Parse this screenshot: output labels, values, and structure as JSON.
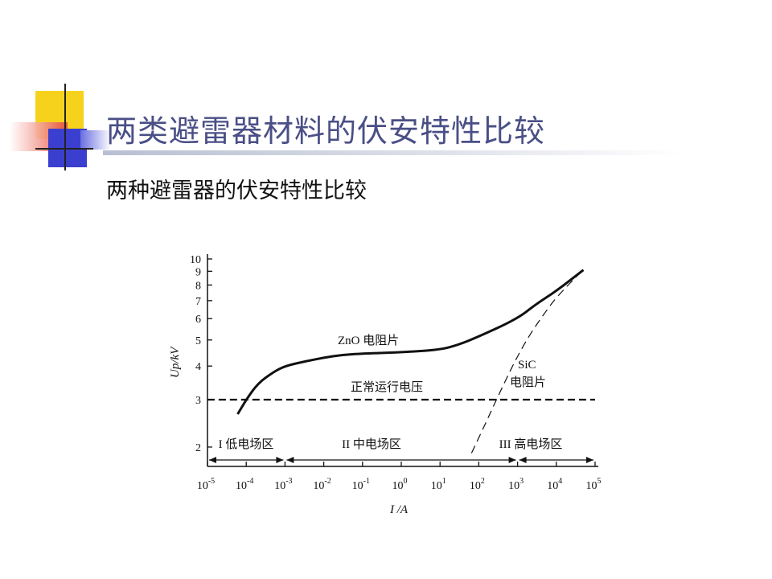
{
  "slide": {
    "title": "两类避雷器材料的伏安特性比较",
    "subtitle": "两种避雷器的伏安特性比较"
  },
  "colors": {
    "title": "#4a4f86",
    "deco_yellow": "#f7d21d",
    "deco_red": "#e4463c",
    "deco_blue": "#3a3fcf"
  },
  "chart_data": {
    "type": "line",
    "x_scale": "log",
    "x_ticks": [
      "10^-5",
      "10^-4",
      "10^-3",
      "10^-2",
      "10^-1",
      "10^0",
      "10^1",
      "10^2",
      "10^3",
      "10^4",
      "10^5"
    ],
    "y_ticks": [
      2,
      3,
      4,
      5,
      6,
      7,
      8,
      9,
      10
    ],
    "xlabel": "I /A",
    "ylabel": "Up/kV",
    "xlim": [
      1e-05,
      100000
    ],
    "ylim": [
      1.5,
      10
    ],
    "series": [
      {
        "name": "ZnO 电阻片",
        "style": "solid",
        "points": [
          [
            6e-05,
            2.65
          ],
          [
            0.0001,
            3.0
          ],
          [
            0.0002,
            3.45
          ],
          [
            0.0005,
            3.8
          ],
          [
            0.001,
            4.0
          ],
          [
            0.003,
            4.15
          ],
          [
            0.01,
            4.3
          ],
          [
            0.03,
            4.4
          ],
          [
            0.1,
            4.45
          ],
          [
            1,
            4.5
          ],
          [
            10,
            4.6
          ],
          [
            30,
            4.8
          ],
          [
            100,
            5.15
          ],
          [
            1000,
            6.0
          ],
          [
            3000,
            6.8
          ],
          [
            10000,
            7.6
          ],
          [
            50000,
            9.1
          ]
        ]
      },
      {
        "name": "SiC 电阻片",
        "style": "dashed",
        "points": [
          [
            65,
            1.9
          ],
          [
            150,
            2.45
          ],
          [
            300,
            3.05
          ],
          [
            800,
            4.1
          ],
          [
            2000,
            5.2
          ],
          [
            5000,
            6.3
          ],
          [
            10000,
            7.2
          ],
          [
            45000,
            9.0
          ]
        ]
      },
      {
        "name": "正常运行电压",
        "style": "dashed",
        "points": [
          [
            1e-05,
            3.0
          ],
          [
            100000,
            3.0
          ]
        ]
      }
    ],
    "annotations": {
      "zno": "ZnO 电阻片",
      "sic_1": "SiC",
      "sic_2": "电阻片",
      "normal": "正常运行电压",
      "region1": "I 低电场区",
      "region2": "II 中电场区",
      "region3": "III 高电场区"
    },
    "regions": [
      {
        "label": "I 低电场区",
        "x_from": 1e-05,
        "x_to": 0.001
      },
      {
        "label": "II 中电场区",
        "x_from": 0.001,
        "x_to": 1000
      },
      {
        "label": "III 高电场区",
        "x_from": 1000,
        "x_to": 100000
      }
    ]
  }
}
